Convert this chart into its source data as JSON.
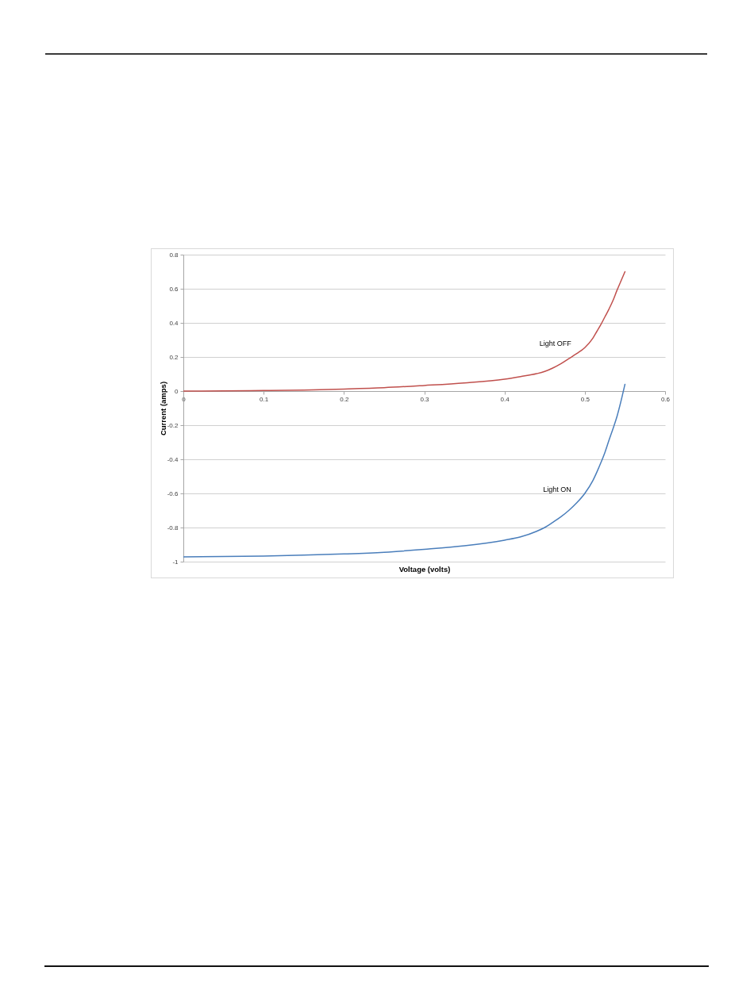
{
  "chart_data": {
    "type": "line",
    "xlabel": "Voltage (volts)",
    "ylabel": "Current (amps)",
    "x": [
      0,
      0.05,
      0.1,
      0.15,
      0.2,
      0.25,
      0.3,
      0.35,
      0.4,
      0.42,
      0.44,
      0.45,
      0.46,
      0.47,
      0.48,
      0.49,
      0.5,
      0.51,
      0.515,
      0.52,
      0.525,
      0.53,
      0.535,
      0.54,
      0.545,
      0.55
    ],
    "series": [
      {
        "name": "Light OFF",
        "color": "#c0504d",
        "values": [
          0,
          0.001,
          0.003,
          0.006,
          0.012,
          0.02,
          0.033,
          0.048,
          0.07,
          0.085,
          0.102,
          0.115,
          0.135,
          0.16,
          0.19,
          0.22,
          0.255,
          0.31,
          0.35,
          0.39,
          0.435,
          0.48,
          0.53,
          0.59,
          0.645,
          0.7
        ]
      },
      {
        "name": "Light ON",
        "color": "#4a7ebb",
        "values": [
          -0.972,
          -0.97,
          -0.967,
          -0.962,
          -0.955,
          -0.945,
          -0.928,
          -0.907,
          -0.874,
          -0.855,
          -0.822,
          -0.8,
          -0.77,
          -0.738,
          -0.7,
          -0.655,
          -0.6,
          -0.525,
          -0.475,
          -0.42,
          -0.36,
          -0.29,
          -0.222,
          -0.15,
          -0.06,
          0.04
        ]
      }
    ],
    "xlim": [
      0,
      0.6
    ],
    "xticks": [
      0,
      0.1,
      0.2,
      0.3,
      0.4,
      0.5,
      0.6
    ],
    "ylim": [
      -1,
      0.8
    ],
    "yticks": [
      -1,
      -0.8,
      -0.6,
      -0.4,
      -0.2,
      0,
      0.2,
      0.4,
      0.6,
      0.8
    ],
    "grid": "y"
  }
}
